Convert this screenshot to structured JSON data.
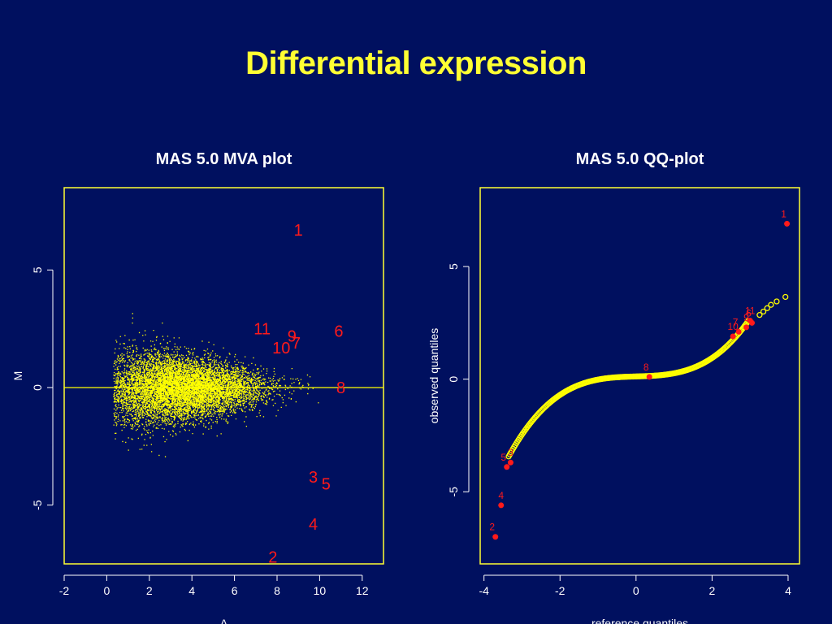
{
  "slide": {
    "title": "Differential expression"
  },
  "colors": {
    "background": "#00105f",
    "title": "#ffff33",
    "points": "#ffff00",
    "highlight": "#ff1a1a",
    "axes": "#ffffff",
    "box": "#ffff33"
  },
  "chart_data": [
    {
      "type": "scatter",
      "title": "MAS 5.0 MVA plot",
      "xlabel": "A",
      "ylabel": "M",
      "xlim": [
        -2,
        13
      ],
      "ylim": [
        -7.5,
        8.5
      ],
      "xticks": [
        -2,
        0,
        2,
        4,
        6,
        8,
        10,
        12
      ],
      "yticks": [
        -5,
        0,
        5
      ],
      "reference_line_y": 0,
      "cloud": "dense cloud of ~10,000 yellow points, spread of M decreasing as A increases",
      "labeled_points": [
        {
          "label": "1",
          "x": 9.0,
          "y": 6.7
        },
        {
          "label": "11",
          "x": 7.3,
          "y": 2.5
        },
        {
          "label": "9",
          "x": 8.7,
          "y": 2.2
        },
        {
          "label": "7",
          "x": 8.9,
          "y": 1.9
        },
        {
          "label": "10",
          "x": 8.2,
          "y": 1.7
        },
        {
          "label": "6",
          "x": 10.9,
          "y": 2.4
        },
        {
          "label": "8",
          "x": 11.0,
          "y": 0.0
        },
        {
          "label": "3",
          "x": 9.7,
          "y": -3.8
        },
        {
          "label": "5",
          "x": 10.3,
          "y": -4.1
        },
        {
          "label": "4",
          "x": 9.7,
          "y": -5.8
        },
        {
          "label": "2",
          "x": 7.8,
          "y": -7.2
        }
      ]
    },
    {
      "type": "scatter",
      "title": "MAS 5.0 QQ-plot",
      "xlabel": "reference quantiles",
      "ylabel": "observed quantiles",
      "xlim": [
        -4.1,
        4.3
      ],
      "ylim": [
        -8.2,
        8.5
      ],
      "xticks": [
        -4,
        -2,
        0,
        2,
        4
      ],
      "yticks": [
        -5,
        0,
        5
      ],
      "curve": "sigmoid-shaped run of yellow open circles from about (-3.4,-4) to (3.9,3.6)",
      "labeled_points": [
        {
          "label": "1",
          "x": 3.97,
          "y": 6.9
        },
        {
          "label": "11",
          "x": 3.0,
          "y": 2.6
        },
        {
          "label": "6",
          "x": 3.05,
          "y": 2.5
        },
        {
          "label": "9",
          "x": 2.9,
          "y": 2.3
        },
        {
          "label": "7",
          "x": 2.7,
          "y": 2.1
        },
        {
          "label": "10",
          "x": 2.55,
          "y": 1.9
        },
        {
          "label": "8",
          "x": 0.35,
          "y": 0.1
        },
        {
          "label": "3",
          "x": -3.3,
          "y": -3.7
        },
        {
          "label": "5",
          "x": -3.4,
          "y": -3.9
        },
        {
          "label": "4",
          "x": -3.55,
          "y": -5.6
        },
        {
          "label": "2",
          "x": -3.7,
          "y": -7.0
        }
      ]
    }
  ]
}
